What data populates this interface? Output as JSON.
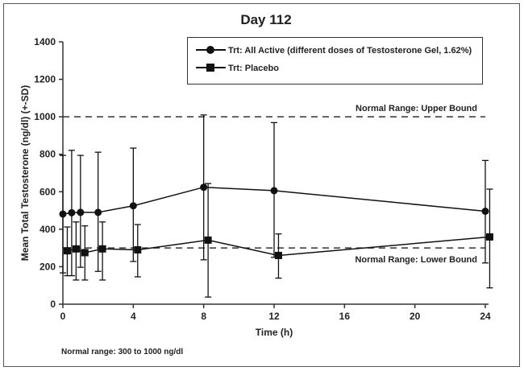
{
  "chart_data": {
    "type": "line",
    "title": "Day 112",
    "xlabel": "Time (h)",
    "ylabel": "Mean Total Testosterone (ng/dl) (+-SD)",
    "xlim": [
      0,
      24
    ],
    "ylim": [
      0,
      1400
    ],
    "x_ticks": [
      "0",
      "4",
      "8",
      "12",
      "16",
      "20",
      "24"
    ],
    "y_ticks": [
      "0",
      "200",
      "400",
      "600",
      "800",
      "1000",
      "1200",
      "1400"
    ],
    "grid": false,
    "legend_position": "top-right",
    "series": [
      {
        "name": "Trt: All Active (different doses of Testosterone Gel, 1.62%)",
        "marker": "circle",
        "x": [
          0,
          0.5,
          1,
          2,
          4,
          8,
          12,
          24
        ],
        "y": [
          481,
          488,
          490,
          490,
          525,
          624,
          606,
          496
        ],
        "sd_upper": [
          794,
          821,
          794,
          811,
          833,
          1010,
          969,
          767
        ],
        "sd_lower": [
          167,
          152,
          197,
          175,
          228,
          237,
          250,
          220
        ]
      },
      {
        "name": "Trt: Placebo",
        "marker": "square",
        "x": [
          0.25,
          0.75,
          1.25,
          2.25,
          4.25,
          8.25,
          12.25,
          24.25
        ],
        "y": [
          285,
          295,
          275,
          295,
          290,
          342,
          260,
          359
        ],
        "sd_upper": [
          412,
          439,
          418,
          439,
          425,
          644,
          375,
          614
        ],
        "sd_lower": [
          152,
          129,
          129,
          129,
          146,
          38,
          139,
          87
        ]
      }
    ],
    "reference_lines": [
      {
        "y": 1000,
        "label": "Normal Range: Upper Bound"
      },
      {
        "y": 300,
        "label": "Normal Range: Lower Bound"
      }
    ],
    "footnote": "Normal range: 300 to 1000 ng/dl"
  }
}
